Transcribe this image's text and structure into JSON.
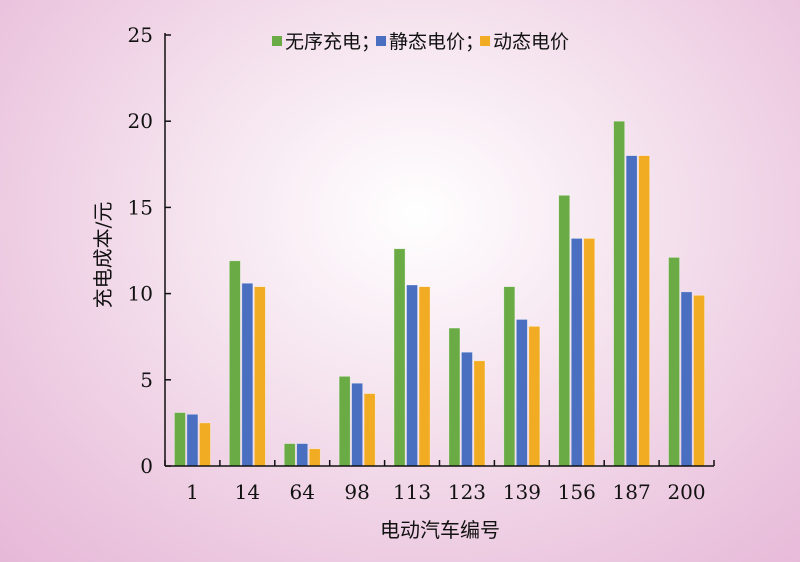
{
  "chart_data": {
    "type": "bar",
    "title": "",
    "xlabel": "电动汽车编号",
    "ylabel": "充电成本/元",
    "ylim": [
      0,
      25
    ],
    "yticks": [
      0,
      5,
      10,
      15,
      20,
      25
    ],
    "categories": [
      "1",
      "14",
      "64",
      "98",
      "113",
      "123",
      "139",
      "156",
      "187",
      "200"
    ],
    "legend_position": "top",
    "series": [
      {
        "name": "无序充电；",
        "color": "#6aab46",
        "values": [
          3.1,
          11.9,
          1.3,
          5.2,
          12.6,
          8.0,
          10.4,
          15.7,
          20.0,
          12.1
        ]
      },
      {
        "name": "静态电价；",
        "color": "#4a6fc0",
        "values": [
          3.0,
          10.6,
          1.3,
          4.8,
          10.5,
          6.6,
          8.5,
          13.2,
          18.0,
          10.1
        ]
      },
      {
        "name": "动态电价",
        "color": "#f2ac24",
        "values": [
          2.5,
          10.4,
          1.0,
          4.2,
          10.4,
          6.1,
          8.1,
          13.2,
          18.0,
          9.9
        ]
      }
    ]
  }
}
